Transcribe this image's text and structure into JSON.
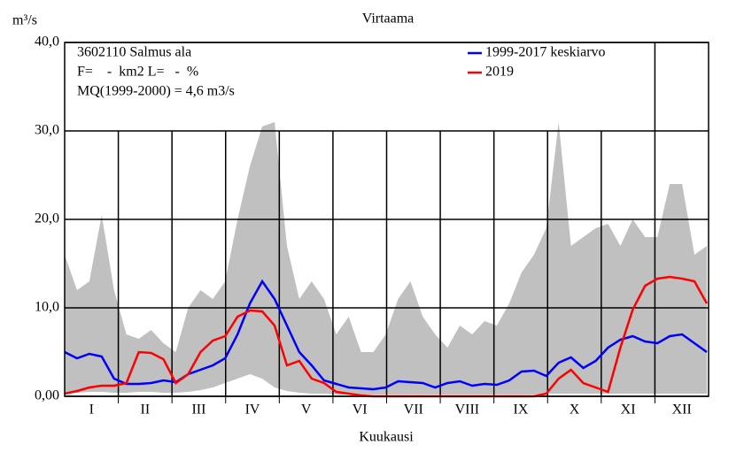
{
  "chart_data": {
    "type": "line",
    "title": "Virtaama",
    "ylabel": "m³/s",
    "xlabel": "Kuukausi",
    "annotations": [
      "3602110 Salmus ala",
      "F=    -  km2 L=   -  %",
      "MQ(1999-2000) = 4,6 m3/s"
    ],
    "categories": [
      "I",
      "II",
      "III",
      "IV",
      "V",
      "VI",
      "VII",
      "VIII",
      "IX",
      "X",
      "XI",
      "XII"
    ],
    "x": [
      0,
      7,
      14,
      21,
      28,
      35,
      42,
      49,
      56,
      63,
      70,
      77,
      84,
      91,
      98,
      105,
      112,
      119,
      126,
      133,
      140,
      147,
      154,
      161,
      168,
      175,
      182,
      189,
      196,
      203,
      210,
      217,
      224,
      231,
      238,
      245,
      252,
      259,
      266,
      273,
      280,
      287,
      294,
      301,
      308,
      315,
      322,
      329,
      336,
      343,
      350,
      357,
      364
    ],
    "xlim": [
      0,
      365
    ],
    "ylim": [
      0,
      40
    ],
    "yticks": [
      {
        "value": 0,
        "label": "0,00"
      },
      {
        "value": 10,
        "label": "10,0"
      },
      {
        "value": 20,
        "label": "20,0"
      },
      {
        "value": 30,
        "label": "30,0"
      },
      {
        "value": 40,
        "label": "40,0"
      }
    ],
    "grid": true,
    "legend": "top-right",
    "range": {
      "color": "#c0c0c0",
      "max": [
        16,
        12,
        13,
        20.5,
        12,
        7,
        6.5,
        7.5,
        6,
        5,
        10,
        12,
        11,
        13,
        20,
        26,
        30.5,
        31,
        17,
        11,
        13,
        11,
        7,
        9,
        5,
        5,
        7,
        11,
        13,
        9,
        7,
        5.5,
        8,
        7,
        8.5,
        8,
        10.5,
        14,
        16,
        19,
        31,
        17,
        18,
        19,
        19.5,
        17,
        20,
        18,
        18,
        24,
        24,
        16,
        17
      ],
      "min": [
        0.4,
        0.4,
        0.5,
        0.5,
        0.4,
        0.4,
        0.5,
        0.5,
        0.4,
        0.4,
        0.5,
        0.7,
        1.0,
        1.5,
        2.0,
        2.5,
        2.0,
        1.0,
        0.6,
        0.4,
        0.3,
        0.3,
        0.2,
        0.2,
        0.2,
        0.2,
        0.2,
        0.2,
        0.2,
        0.2,
        0.2,
        0.2,
        0.2,
        0.2,
        0.2,
        0.2,
        0.2,
        0.2,
        0.2,
        0.3,
        0.3,
        0.3,
        0.3,
        0.3,
        0.3,
        0.3,
        0.3,
        0.3,
        0.3,
        0.3,
        0.3,
        0.3,
        0.3
      ]
    },
    "series": [
      {
        "name": "1999-2017 keskiarvo",
        "color": "#0000ff",
        "values": [
          5.0,
          4.3,
          4.8,
          4.5,
          2.0,
          1.4,
          1.4,
          1.5,
          1.8,
          1.6,
          2.5,
          3.0,
          3.5,
          4.3,
          7.0,
          10.5,
          13.0,
          11.0,
          8.0,
          5.0,
          3.5,
          1.8,
          1.4,
          1.0,
          0.9,
          0.8,
          1.0,
          1.7,
          1.6,
          1.5,
          1.0,
          1.5,
          1.7,
          1.2,
          1.4,
          1.3,
          1.8,
          2.8,
          2.9,
          2.3,
          3.8,
          4.4,
          3.2,
          4.0,
          5.5,
          6.4,
          6.8,
          6.2,
          6.0,
          6.8,
          7.0,
          6.0,
          5.0
        ]
      },
      {
        "name": "2019",
        "color": "#ff0000",
        "values": [
          0.3,
          0.6,
          1.0,
          1.2,
          1.2,
          1.5,
          5.0,
          4.9,
          4.2,
          1.5,
          2.5,
          5.0,
          6.3,
          6.8,
          9.0,
          9.7,
          9.6,
          8.0,
          3.5,
          4.0,
          2.0,
          1.5,
          0.5,
          0.3,
          0.1,
          0,
          0,
          0,
          0,
          0,
          0,
          0,
          0,
          0,
          0,
          0,
          0,
          0,
          0,
          0.3,
          2.0,
          3.0,
          1.5,
          1.0,
          0.5,
          5.5,
          9.8,
          12.5,
          13.3,
          13.5,
          13.3,
          13.0,
          10.5
        ]
      }
    ]
  }
}
